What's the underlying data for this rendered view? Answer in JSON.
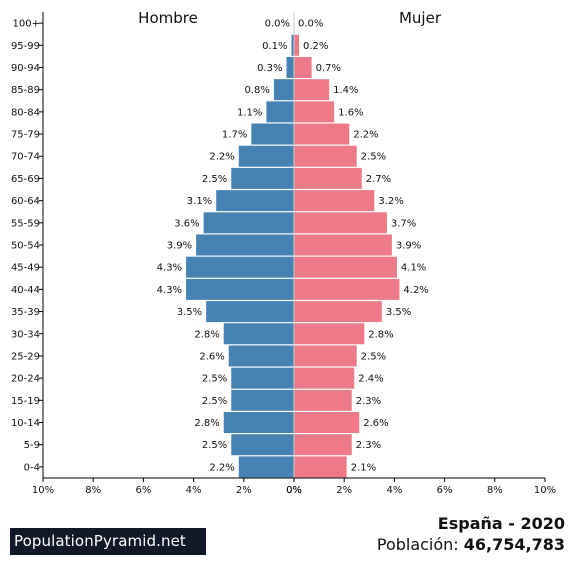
{
  "chart_data": {
    "type": "bar",
    "subtype": "population-pyramid",
    "orientation": "horizontal",
    "categories": [
      "100+",
      "95-99",
      "90-94",
      "85-89",
      "80-84",
      "75-79",
      "70-74",
      "65-69",
      "60-64",
      "55-59",
      "50-54",
      "45-49",
      "40-44",
      "35-39",
      "30-34",
      "25-29",
      "20-24",
      "15-19",
      "10-14",
      "5-9",
      "0-4"
    ],
    "series": [
      {
        "name": "Hombre",
        "color": "#4682b4",
        "values": [
          0.0,
          0.1,
          0.3,
          0.8,
          1.1,
          1.7,
          2.2,
          2.5,
          3.1,
          3.6,
          3.9,
          4.3,
          4.3,
          3.5,
          2.8,
          2.6,
          2.5,
          2.5,
          2.8,
          2.5,
          2.2
        ],
        "labels": [
          "0.0%",
          "0.1%",
          "0.3%",
          "0.8%",
          "1.1%",
          "1.7%",
          "2.2%",
          "2.5%",
          "3.1%",
          "3.6%",
          "3.9%",
          "4.3%",
          "4.3%",
          "3.5%",
          "2.8%",
          "2.6%",
          "2.5%",
          "2.5%",
          "2.8%",
          "2.5%",
          "2.2%"
        ]
      },
      {
        "name": "Mujer",
        "color": "#ee7989",
        "values": [
          0.0,
          0.2,
          0.7,
          1.4,
          1.6,
          2.2,
          2.5,
          2.7,
          3.2,
          3.7,
          3.9,
          4.1,
          4.2,
          3.5,
          2.8,
          2.5,
          2.4,
          2.3,
          2.6,
          2.3,
          2.1
        ],
        "labels": [
          "0.0%",
          "0.2%",
          "0.7%",
          "1.4%",
          "1.6%",
          "2.2%",
          "2.5%",
          "2.7%",
          "3.2%",
          "3.7%",
          "3.9%",
          "4.1%",
          "4.2%",
          "3.5%",
          "2.8%",
          "2.5%",
          "2.4%",
          "2.3%",
          "2.6%",
          "2.3%",
          "2.1%"
        ]
      }
    ],
    "xlim": [
      0,
      10
    ],
    "x_tick_labels_left": [
      "10%",
      "8%",
      "6%",
      "4%",
      "2%",
      "0%"
    ],
    "x_tick_labels_right": [
      "0%",
      "2%",
      "4%",
      "6%",
      "8%",
      "10%"
    ],
    "grid": false,
    "legend": "none"
  },
  "footer": {
    "brand": "PopulationPyramid.net",
    "brand_bg": "#111827",
    "country_year": "España - 2020",
    "population_label": "Población: ",
    "population_value": "46,754,783"
  }
}
